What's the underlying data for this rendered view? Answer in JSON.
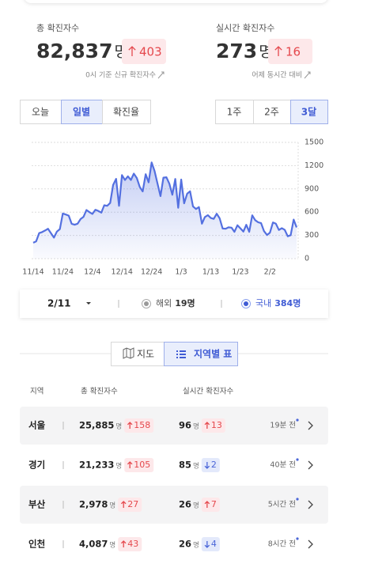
{
  "summary": [
    {
      "label": "총 확진자수",
      "value": "82,837",
      "unit": "명",
      "delta": "403",
      "note": "0시 기준 신규 확진자수"
    },
    {
      "label": "실시간 확진자수",
      "value": "273",
      "unit": "명",
      "delta": "16",
      "note": "어제 동시간 대비"
    }
  ],
  "tabs_left": {
    "items": [
      "오늘",
      "일별",
      "확진율"
    ],
    "active": 1
  },
  "tabs_right": {
    "items": [
      "1주",
      "2주",
      "3달"
    ],
    "active": 2
  },
  "chart": {
    "type": "line",
    "color": "#5470e0",
    "grid": true,
    "categories": [
      "11/14",
      null,
      null,
      null,
      null,
      null,
      null,
      null,
      null,
      null,
      "11/24",
      null,
      null,
      null,
      null,
      null,
      null,
      null,
      null,
      null,
      "12/4",
      null,
      null,
      null,
      null,
      null,
      null,
      null,
      null,
      null,
      "12/14",
      null,
      null,
      null,
      null,
      null,
      null,
      null,
      null,
      null,
      "12/24",
      null,
      null,
      null,
      null,
      null,
      null,
      null,
      null,
      null,
      "1/3",
      null,
      null,
      null,
      null,
      null,
      null,
      null,
      null,
      null,
      "1/13",
      null,
      null,
      null,
      null,
      null,
      null,
      null,
      null,
      null,
      "1/23",
      null,
      null,
      null,
      null,
      null,
      null,
      null,
      null,
      null,
      "2/2",
      null,
      null,
      null,
      null,
      null,
      null,
      null,
      null,
      null
    ],
    "values": [
      205,
      223,
      330,
      343,
      363,
      386,
      330,
      271,
      349,
      382,
      583,
      569,
      555,
      450,
      438,
      451,
      511,
      540,
      628,
      600,
      577,
      631,
      615,
      594,
      689,
      682,
      718,
      950,
      1030,
      682,
      1078,
      1014,
      1062,
      1015,
      1097,
      1040,
      926,
      867,
      1090,
      985,
      1241,
      1132,
      970,
      807,
      1045,
      1050,
      967,
      824,
      1029,
      657,
      1020,
      714,
      838,
      869,
      674,
      641,
      665,
      451,
      537,
      561,
      524,
      513,
      580,
      520,
      389,
      386,
      404,
      400,
      346,
      431,
      392,
      349,
      437,
      346,
      559,
      497,
      469,
      458,
      355,
      305,
      336,
      467,
      451,
      370,
      393,
      371,
      289,
      303,
      504,
      403
    ],
    "ylim": [
      0,
      1500
    ],
    "yticks": [
      0,
      300,
      600,
      900,
      1200,
      1500
    ]
  },
  "date_bar": {
    "date": "2/11",
    "overseas_label": "해외",
    "overseas": "19명",
    "domestic_label": "국내",
    "domestic": "384명"
  },
  "view_toggle": {
    "items": [
      "지도",
      "지역별 표"
    ],
    "active": 1
  },
  "table": {
    "headers": [
      "지역",
      "총 확진자수",
      "실시간 확진자수"
    ],
    "rows": [
      {
        "region": "서울",
        "total": "25,885",
        "unit": "명",
        "total_delta": "158",
        "realtime": "96",
        "realtime_unit": "명",
        "realtime_delta": "13",
        "dir": "up",
        "time": "19분 전"
      },
      {
        "region": "경기",
        "total": "21,233",
        "unit": "명",
        "total_delta": "105",
        "realtime": "85",
        "realtime_unit": "명",
        "realtime_delta": "2",
        "dir": "down",
        "time": "40분 전"
      },
      {
        "region": "부산",
        "total": "2,978",
        "unit": "명",
        "total_delta": "27",
        "realtime": "26",
        "realtime_unit": "명",
        "realtime_delta": "7",
        "dir": "up",
        "time": "5시간 전"
      },
      {
        "region": "인천",
        "total": "4,087",
        "unit": "명",
        "total_delta": "43",
        "realtime": "26",
        "realtime_unit": "명",
        "realtime_delta": "4",
        "dir": "down",
        "time": "8시간 전"
      }
    ]
  }
}
